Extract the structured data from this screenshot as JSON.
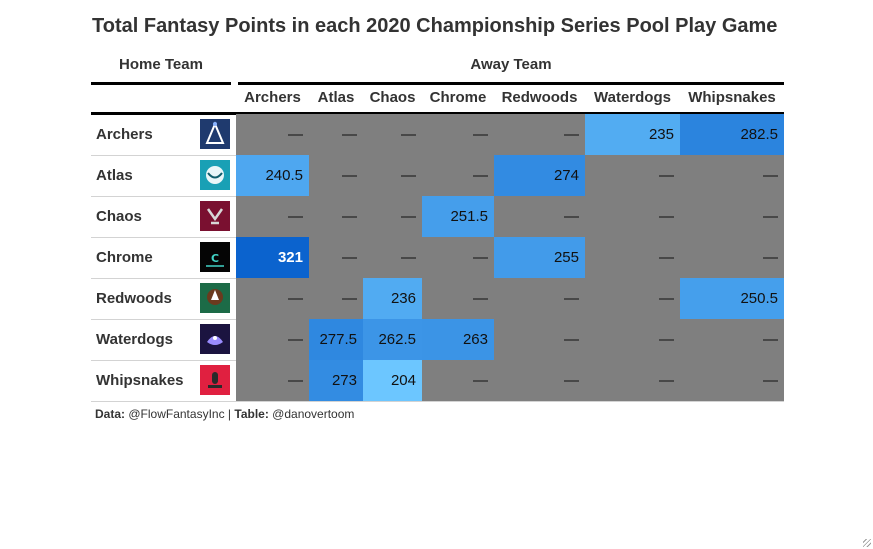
{
  "title": "Total Fantasy Points in each 2020 Championship Series Pool Play Game",
  "spanners": {
    "home": "Home Team",
    "away": "Away Team"
  },
  "footer": {
    "data_label": "Data:",
    "data_source": "@FlowFantasyInc",
    "separator": " | ",
    "table_label": "Table:",
    "table_source": "@danovertoom"
  },
  "empty_value": "—",
  "colors": {
    "empty": "#7f7f7f",
    "scale_low": "#6cc6ff",
    "scale_high": "#0b63ce"
  },
  "chart_data": {
    "type": "table",
    "columns": [
      "Archers",
      "Atlas",
      "Chaos",
      "Chrome",
      "Redwoods",
      "Waterdogs",
      "Whipsnakes"
    ],
    "rows": [
      {
        "team": "Archers",
        "logo": "archers-logo-icon",
        "values": [
          null,
          null,
          null,
          null,
          null,
          235,
          282.5
        ]
      },
      {
        "team": "Atlas",
        "logo": "atlas-logo-icon",
        "values": [
          240.5,
          null,
          null,
          null,
          274,
          null,
          null
        ]
      },
      {
        "team": "Chaos",
        "logo": "chaos-logo-icon",
        "values": [
          null,
          null,
          null,
          251.5,
          null,
          null,
          null
        ]
      },
      {
        "team": "Chrome",
        "logo": "chrome-logo-icon",
        "values": [
          321,
          null,
          null,
          null,
          255,
          null,
          null
        ]
      },
      {
        "team": "Redwoods",
        "logo": "redwoods-logo-icon",
        "values": [
          null,
          null,
          236,
          null,
          null,
          null,
          250.5
        ]
      },
      {
        "team": "Waterdogs",
        "logo": "waterdogs-logo-icon",
        "values": [
          null,
          277.5,
          262.5,
          263,
          null,
          null,
          null
        ]
      },
      {
        "team": "Whipsnakes",
        "logo": "whipsnakes-logo-icon",
        "values": [
          null,
          273,
          204,
          null,
          null,
          null,
          null
        ]
      }
    ]
  }
}
